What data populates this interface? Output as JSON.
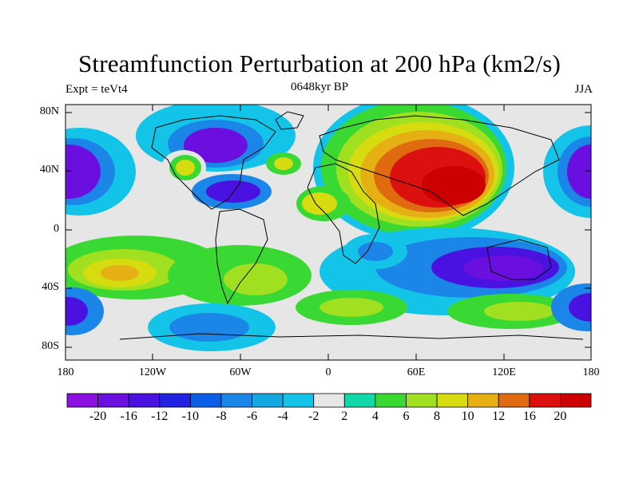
{
  "title": "Streamfunction Perturbation at 200 hPa (km2/s)",
  "left_string": "Expt = teVt4",
  "center_string": "0648kyr BP",
  "right_string": "JJA",
  "lat_labels": [
    "80N",
    "40N",
    "0",
    "40S",
    "80S"
  ],
  "lon_labels": [
    "180",
    "120W",
    "60W",
    "0",
    "60E",
    "120E",
    "180"
  ],
  "colorbar": {
    "levels": [
      "-20",
      "-16",
      "-12",
      "-10",
      "-8",
      "-6",
      "-4",
      "-2",
      "2",
      "4",
      "6",
      "8",
      "10",
      "12",
      "16",
      "20"
    ],
    "colors": [
      "#8a11e0",
      "#6b0fe0",
      "#4a12e0",
      "#2222e0",
      "#0a5ee8",
      "#1b86e8",
      "#14a8e3",
      "#14c4e8",
      "#e6e6e6",
      "#10d8a8",
      "#3ad832",
      "#a0e020",
      "#d6dc10",
      "#e6b015",
      "#e06a10",
      "#dd1010",
      "#cc0000"
    ]
  },
  "chart_data": {
    "type": "heatmap",
    "title": "Streamfunction Perturbation at 200 hPa (km2/s)",
    "subtitle": "0648kyr BP",
    "season": "JJA",
    "experiment": "teVt4",
    "xlim": [
      -180,
      180
    ],
    "ylim": [
      -90,
      90
    ],
    "centers": [
      {
        "lon": 70,
        "lat": 35,
        "value": 20
      },
      {
        "lon": 45,
        "lat": 48,
        "value": 16
      },
      {
        "lon": -155,
        "lat": 40,
        "value": -20
      },
      {
        "lon": 175,
        "lat": 40,
        "value": -20
      },
      {
        "lon": -75,
        "lat": 55,
        "value": -18
      },
      {
        "lon": -70,
        "lat": 25,
        "value": -14
      },
      {
        "lon": -100,
        "lat": 40,
        "value": 10
      },
      {
        "lon": -25,
        "lat": 42,
        "value": 8
      },
      {
        "lon": -5,
        "lat": 20,
        "value": 10
      },
      {
        "lon": -140,
        "lat": -30,
        "value": 12
      },
      {
        "lon": 100,
        "lat": -32,
        "value": -18
      },
      {
        "lon": -170,
        "lat": -55,
        "value": -14
      },
      {
        "lon": 170,
        "lat": -55,
        "value": -16
      },
      {
        "lon": -75,
        "lat": -68,
        "value": -10
      },
      {
        "lon": 40,
        "lat": -28,
        "value": -8
      },
      {
        "lon": 10,
        "lat": -55,
        "value": 8
      },
      {
        "lon": 130,
        "lat": -58,
        "value": 8
      },
      {
        "lon": 30,
        "lat": 85,
        "value": 2
      }
    ]
  }
}
